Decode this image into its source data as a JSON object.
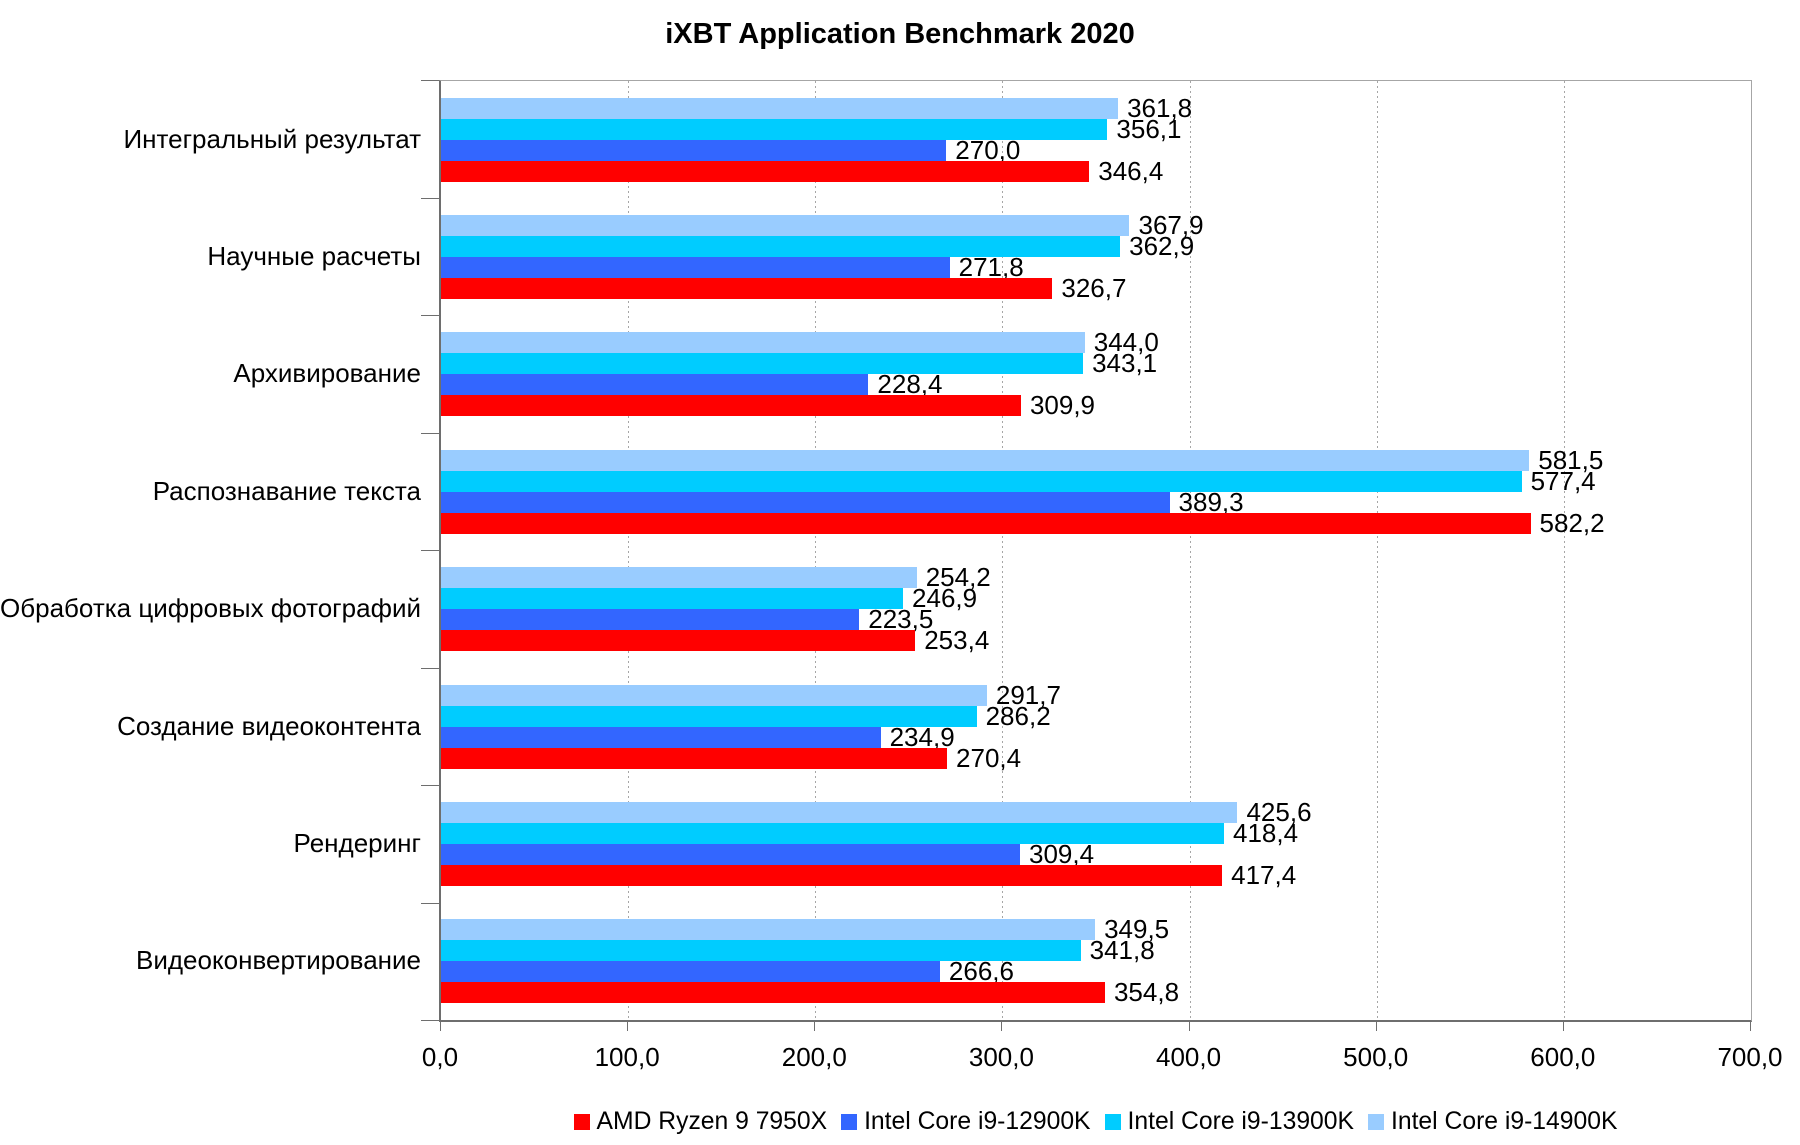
{
  "title": "iXBT Application Benchmark 2020",
  "chart_data": {
    "type": "bar",
    "orientation": "horizontal",
    "title": "iXBT Application Benchmark 2020",
    "categories": [
      "Интегральный результат",
      "Научные расчеты",
      "Архивирование",
      "Распознавание текста",
      "Обработка цифровых фотографий",
      "Создание видеоконтента",
      "Рендеринг",
      "Видеоконвертирование"
    ],
    "series": [
      {
        "name": "AMD Ryzen 9 7950X",
        "color": "#ff0000",
        "values": [
          346.4,
          326.7,
          309.9,
          582.2,
          253.4,
          270.4,
          417.4,
          354.8
        ]
      },
      {
        "name": "Intel Core i9-12900K",
        "color": "#3366ff",
        "values": [
          270.0,
          271.8,
          228.4,
          389.3,
          223.5,
          234.9,
          309.4,
          266.6
        ]
      },
      {
        "name": "Intel Core i9-13900K",
        "color": "#00ccff",
        "values": [
          356.1,
          362.9,
          343.1,
          577.4,
          246.9,
          286.2,
          418.4,
          341.8
        ]
      },
      {
        "name": "Intel Core i9-14900K",
        "color": "#99ccff",
        "values": [
          361.8,
          367.9,
          344.0,
          581.5,
          254.2,
          291.7,
          425.6,
          349.5
        ]
      }
    ],
    "xlim": [
      0,
      700
    ],
    "x_tick_labels": [
      "0,0",
      "100,0",
      "200,0",
      "300,0",
      "400,0",
      "500,0",
      "600,0",
      "700,0"
    ],
    "x_tick_step": 100,
    "grid": "vertical-dotted",
    "legend_position": "bottom",
    "value_labels": true,
    "decimal_separator": ","
  }
}
